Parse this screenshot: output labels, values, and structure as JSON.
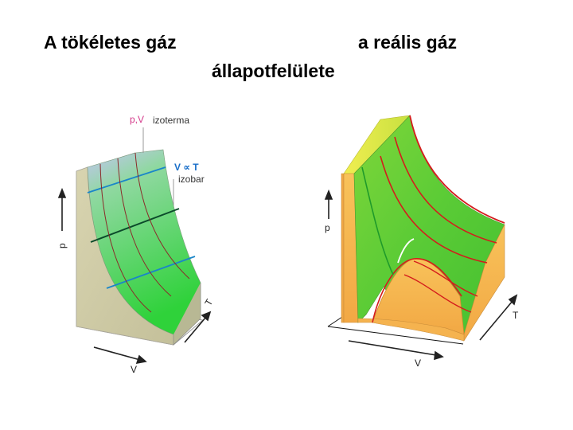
{
  "titles": {
    "left": "A tökéletes gáz",
    "right": "a reális gáz",
    "subtitle": "állapotfelülete"
  },
  "ideal_gas_figure": {
    "axis_p": "p",
    "axis_V": "V",
    "axis_T": "T",
    "label_pV": "p,V",
    "label_isotherm": "izoterma",
    "label_V_prop_T": "V ∝ T",
    "label_isobar": "izobar",
    "colors": {
      "surface_top": "#b9b8f2",
      "surface_bottom": "#3fd83a",
      "side_wall": "#cfcba3",
      "isobar_lines": "#1a86c9",
      "isotherm_lines": "#8b2a2a",
      "highlight_line": "#0b4a2a"
    }
  },
  "real_gas_figure": {
    "axis_p": "p",
    "axis_V": "V",
    "axis_T": "T",
    "colors": {
      "surface_green": "#5fd03a",
      "surface_yellow": "#e8e84a",
      "side_orange": "#f5b34f",
      "isotherm_lines": "#d41c1c",
      "critical_isotherm": "#1f9a2a",
      "coexistence_curve": "#ffffff"
    }
  }
}
